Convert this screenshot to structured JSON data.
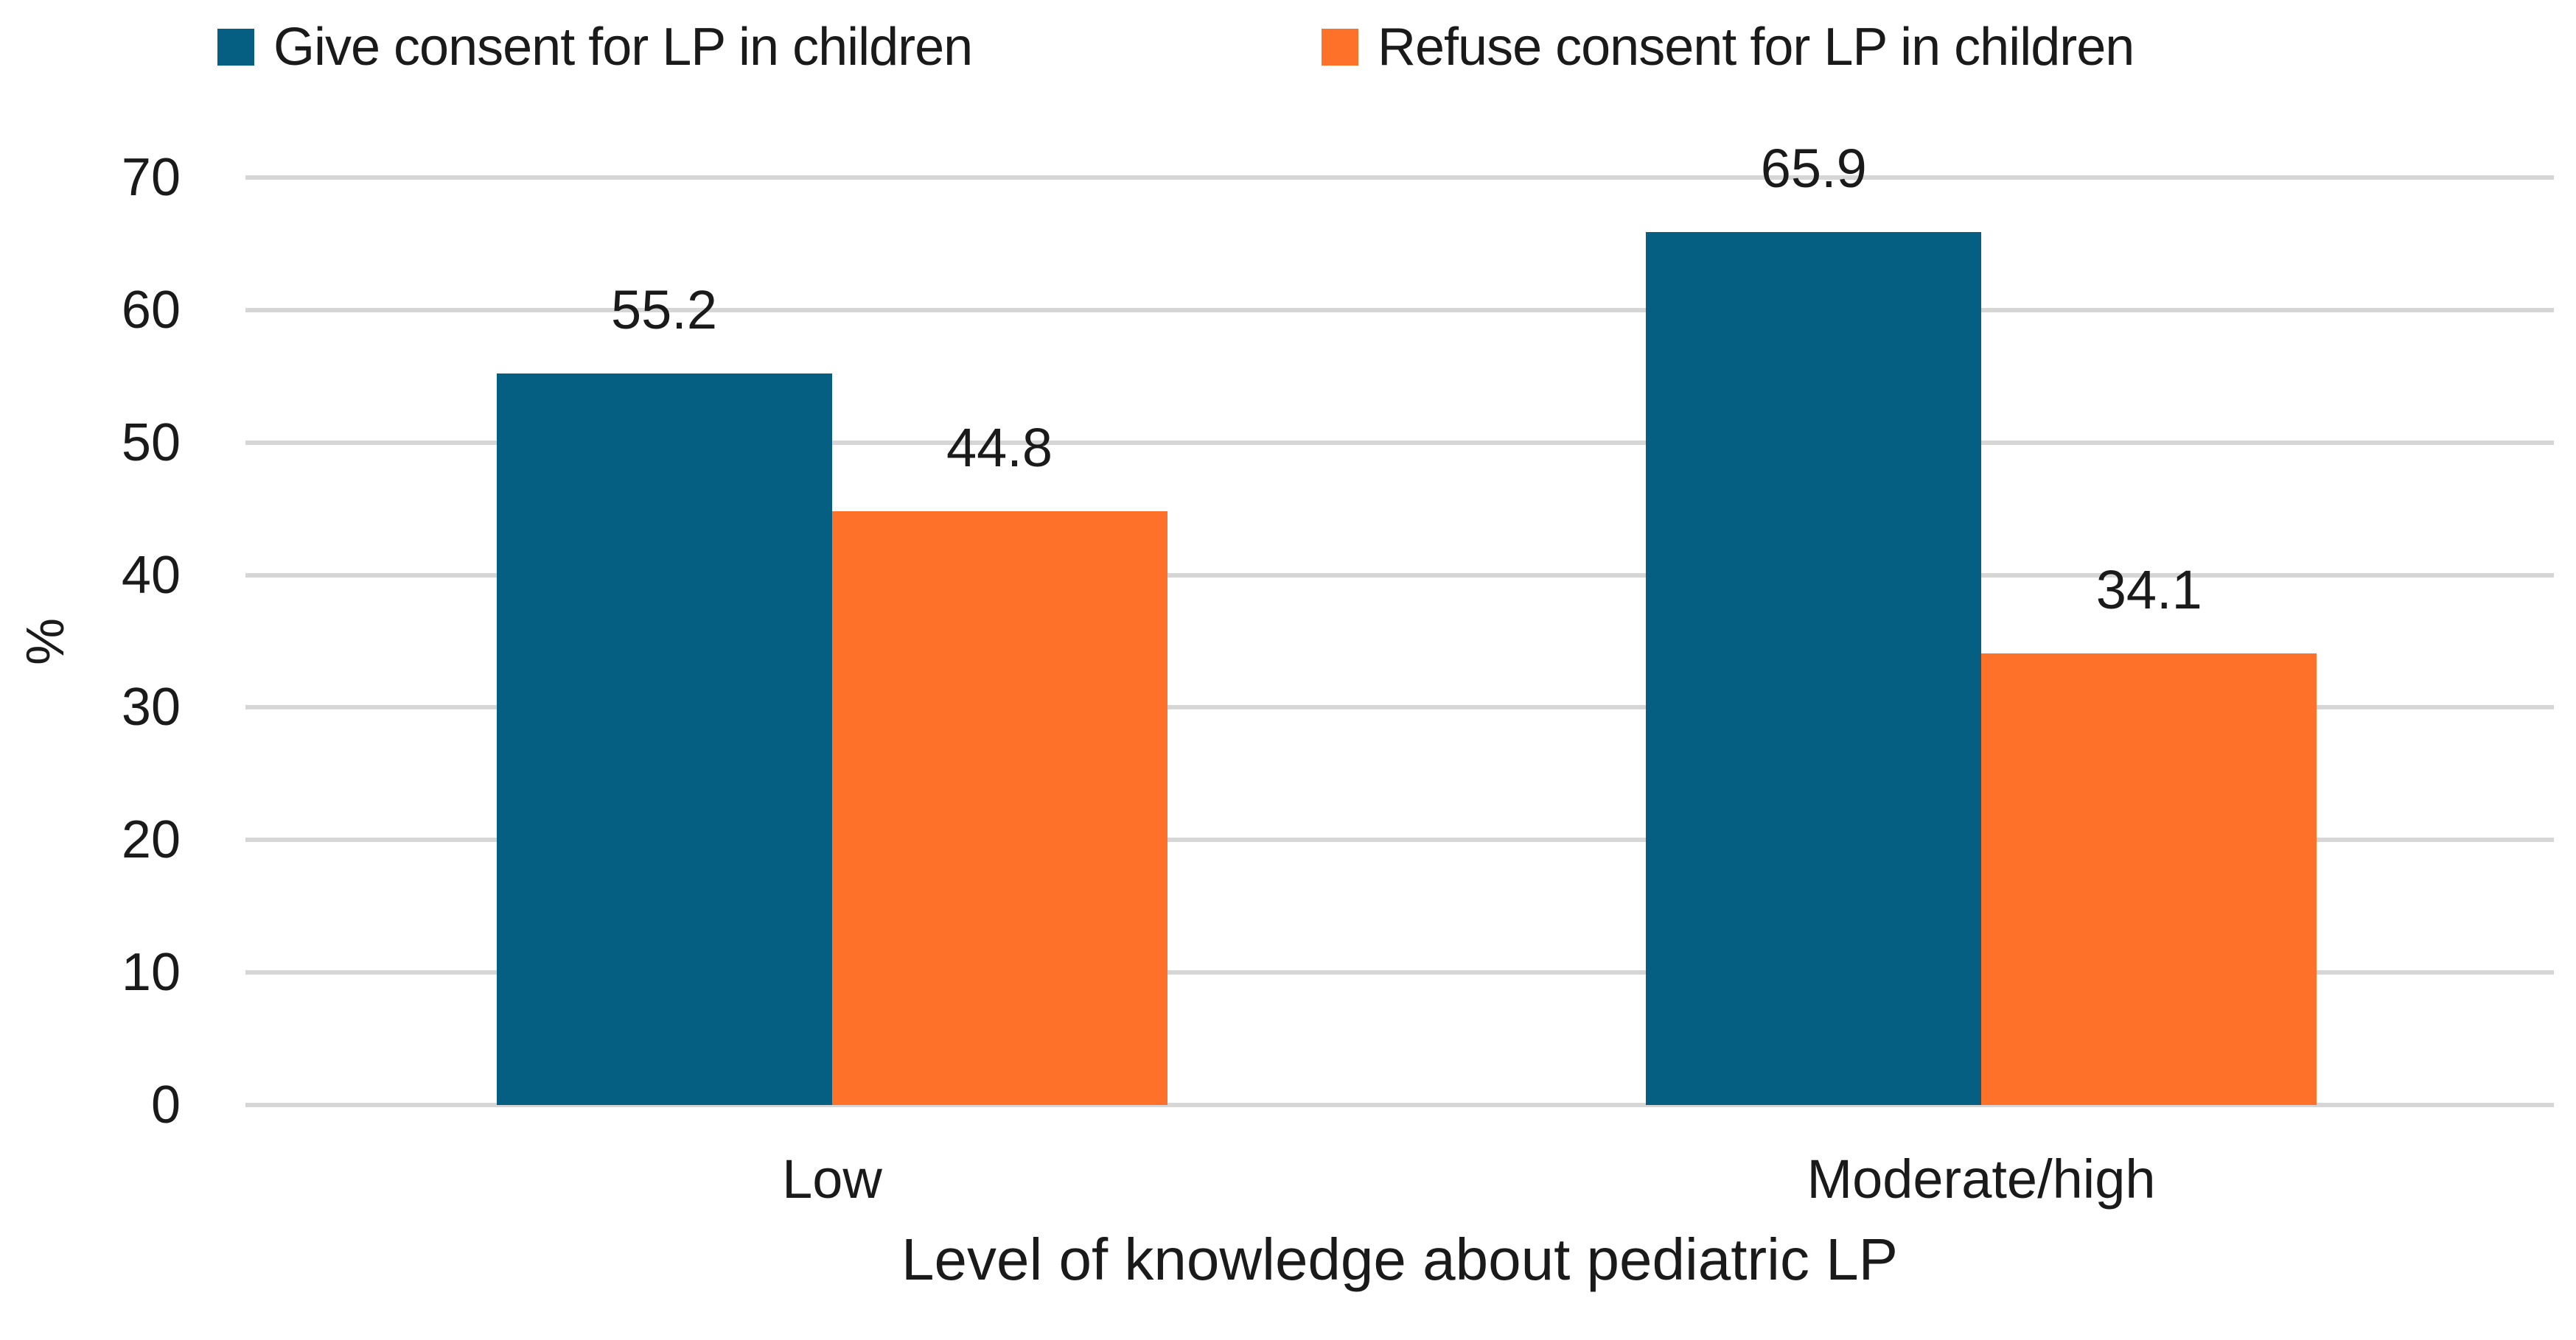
{
  "chart_data": {
    "type": "bar",
    "title": "",
    "categories": [
      "Low",
      "Moderate/high"
    ],
    "series": [
      {
        "name": "Give consent for LP in children",
        "color": "#055F82",
        "values": [
          55.2,
          65.9
        ]
      },
      {
        "name": "Refuse consent for LP in children",
        "color": "#FD7228",
        "values": [
          44.8,
          34.1
        ]
      }
    ],
    "data_labels": [
      "55.2",
      "44.8",
      "65.9",
      "34.1"
    ],
    "xlabel": "Level of knowledge about pediatric LP",
    "ylabel": "%",
    "ylim": [
      0,
      70
    ],
    "yticks": [
      0,
      10,
      20,
      30,
      40,
      50,
      60,
      70
    ],
    "grid": true,
    "gridline_color": "#D6D6D6",
    "legend_position": "top",
    "text_color": "#1A1A1A",
    "background": "#FFFFFF"
  }
}
